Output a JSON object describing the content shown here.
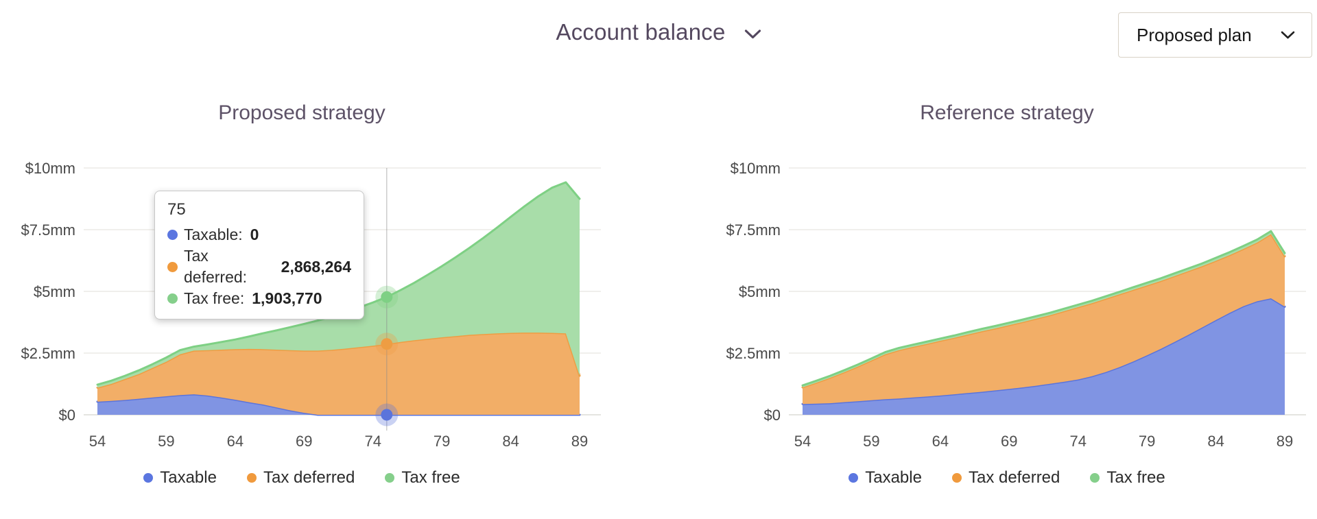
{
  "header": {
    "title": "Account balance",
    "title_chevron_icon": "chevron-down-icon",
    "plan_select": {
      "value": "Proposed plan",
      "chevron_icon": "chevron-down-icon"
    }
  },
  "colors": {
    "page_title_text": "#54485f",
    "chart_title_text": "#5d5267",
    "axis_text": "#474747",
    "grid_line": "#eceae5",
    "zero_line": "#dcdbd5",
    "hover_line": "#8a8a8a",
    "taxable_line": "#5b74db",
    "taxable_fill": "#8094e3",
    "tax_deferred_line": "#ee9d43",
    "tax_deferred_fill": "#f2ae67",
    "tax_free_line": "#7ed084",
    "tax_free_fill": "#a8dda9"
  },
  "legend": {
    "items": [
      {
        "label": "Taxable",
        "color": "#5b76e0"
      },
      {
        "label": "Tax deferred",
        "color": "#f09a3d"
      },
      {
        "label": "Tax free",
        "color": "#85cf8b"
      }
    ]
  },
  "tooltip": {
    "age": "75",
    "rows": [
      {
        "label": "Taxable:",
        "value": "0",
        "color": "#5b76e0"
      },
      {
        "label": "Tax deferred:",
        "value": "2,868,264",
        "color": "#f09a3d"
      },
      {
        "label": "Tax free:",
        "value": "1,903,770",
        "color": "#85cf8b"
      }
    ]
  },
  "axes": {
    "y_ticks": [
      {
        "label": "$10mm",
        "value": 10
      },
      {
        "label": "$7.5mm",
        "value": 7.5
      },
      {
        "label": "$5mm",
        "value": 5
      },
      {
        "label": "$2.5mm",
        "value": 2.5
      },
      {
        "label": "$0",
        "value": 0
      }
    ],
    "x_ticks": [
      54,
      59,
      64,
      69,
      74,
      79,
      84,
      89
    ],
    "x_min": 54,
    "x_max": 89,
    "y_max": 10,
    "y_unit": "$mm",
    "grid": true,
    "legend_position": "bottom"
  },
  "chart_data": [
    {
      "type": "area",
      "stacked": true,
      "title": "Proposed strategy",
      "x": [
        54,
        55,
        56,
        57,
        58,
        59,
        60,
        61,
        62,
        63,
        64,
        65,
        66,
        67,
        68,
        69,
        70,
        71,
        72,
        73,
        74,
        75,
        76,
        77,
        78,
        79,
        80,
        81,
        82,
        83,
        84,
        85,
        86,
        87,
        88,
        89
      ],
      "series": [
        {
          "name": "Taxable",
          "line": "#5b74db",
          "fill": "#8094e3",
          "values": [
            0.53,
            0.56,
            0.6,
            0.65,
            0.7,
            0.75,
            0.8,
            0.83,
            0.78,
            0.7,
            0.61,
            0.51,
            0.42,
            0.3,
            0.18,
            0.08,
            0,
            0,
            0,
            0,
            0,
            0,
            0,
            0,
            0,
            0,
            0,
            0,
            0,
            0,
            0,
            0,
            0,
            0,
            0,
            0
          ]
        },
        {
          "name": "Tax deferred",
          "line": "#ee9d43",
          "fill": "#f2ae67",
          "values": [
            0.57,
            0.69,
            0.85,
            1.0,
            1.2,
            1.4,
            1.65,
            1.77,
            1.84,
            1.94,
            2.05,
            2.16,
            2.24,
            2.34,
            2.44,
            2.52,
            2.6,
            2.63,
            2.68,
            2.74,
            2.8,
            2.87,
            2.95,
            3.02,
            3.08,
            3.14,
            3.19,
            3.24,
            3.27,
            3.3,
            3.32,
            3.33,
            3.33,
            3.32,
            3.3,
            1.58
          ]
        },
        {
          "name": "Tax free",
          "line": "#7ed084",
          "fill": "#a8dda9",
          "values": [
            0.12,
            0.13,
            0.13,
            0.15,
            0.15,
            0.17,
            0.17,
            0.16,
            0.23,
            0.31,
            0.39,
            0.5,
            0.64,
            0.78,
            0.93,
            1.08,
            1.22,
            1.35,
            1.48,
            1.61,
            1.75,
            1.9,
            2.1,
            2.33,
            2.6,
            2.88,
            3.19,
            3.52,
            3.89,
            4.28,
            4.7,
            5.12,
            5.52,
            5.88,
            6.12,
            7.17
          ]
        }
      ],
      "hover": {
        "age": 75,
        "points": [
          {
            "series": "Tax free",
            "stack_value": 4.77,
            "color": "#7ed084"
          },
          {
            "series": "Tax deferred",
            "stack_value": 2.87,
            "color": "#ee9d43"
          },
          {
            "series": "Taxable",
            "stack_value": 0,
            "color": "#5b74db"
          }
        ]
      }
    },
    {
      "type": "area",
      "stacked": true,
      "title": "Reference strategy",
      "x": [
        54,
        55,
        56,
        57,
        58,
        59,
        60,
        61,
        62,
        63,
        64,
        65,
        66,
        67,
        68,
        69,
        70,
        71,
        72,
        73,
        74,
        75,
        76,
        77,
        78,
        79,
        80,
        81,
        82,
        83,
        84,
        85,
        86,
        87,
        88,
        89
      ],
      "series": [
        {
          "name": "Taxable",
          "line": "#5b74db",
          "fill": "#8094e3",
          "values": [
            0.44,
            0.45,
            0.47,
            0.51,
            0.55,
            0.59,
            0.63,
            0.66,
            0.7,
            0.74,
            0.78,
            0.83,
            0.88,
            0.93,
            0.99,
            1.05,
            1.11,
            1.18,
            1.26,
            1.34,
            1.43,
            1.56,
            1.73,
            1.93,
            2.16,
            2.41,
            2.67,
            2.95,
            3.24,
            3.54,
            3.84,
            4.13,
            4.4,
            4.6,
            4.72,
            4.38
          ]
        },
        {
          "name": "Tax deferred",
          "line": "#ee9d43",
          "fill": "#f2ae67",
          "values": [
            0.67,
            0.85,
            1.03,
            1.21,
            1.4,
            1.61,
            1.82,
            1.96,
            2.05,
            2.13,
            2.22,
            2.29,
            2.37,
            2.45,
            2.51,
            2.58,
            2.65,
            2.72,
            2.78,
            2.86,
            2.93,
            2.96,
            2.97,
            2.95,
            2.9,
            2.83,
            2.75,
            2.67,
            2.58,
            2.48,
            2.4,
            2.34,
            2.32,
            2.38,
            2.6,
            2.04
          ]
        },
        {
          "name": "Tax free",
          "line": "#7ed084",
          "fill": "#a8dda9",
          "values": [
            0.08,
            0.08,
            0.08,
            0.08,
            0.08,
            0.08,
            0.09,
            0.09,
            0.09,
            0.09,
            0.09,
            0.09,
            0.1,
            0.1,
            0.1,
            0.1,
            0.1,
            0.1,
            0.1,
            0.1,
            0.1,
            0.1,
            0.1,
            0.1,
            0.11,
            0.11,
            0.11,
            0.11,
            0.11,
            0.11,
            0.12,
            0.12,
            0.12,
            0.12,
            0.12,
            0.13
          ]
        }
      ],
      "hover": null
    }
  ]
}
